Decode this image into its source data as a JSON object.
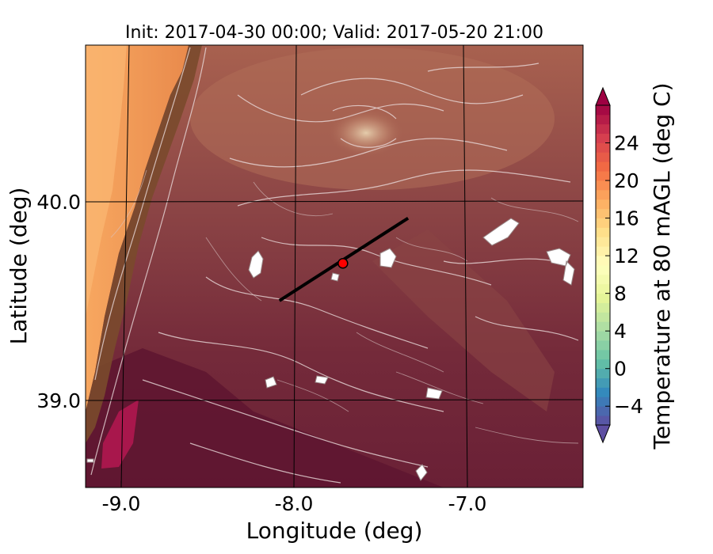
{
  "chart_data": {
    "type": "heatmap",
    "title": "Init: 2017-04-30 00:00; Valid: 2017-05-20 21:00",
    "xlabel": "Longitude (deg)",
    "ylabel": "Latitude (deg)",
    "xlim": [
      -9.25,
      -6.35
    ],
    "ylim": [
      38.55,
      40.8
    ],
    "x_ticks": [
      -9.0,
      -8.0,
      -7.0
    ],
    "x_tick_labels": [
      "-9.0",
      "-8.0",
      "-7.0"
    ],
    "y_ticks": [
      39.0,
      40.0
    ],
    "y_tick_labels": [
      "39.0",
      "40.0"
    ],
    "grid": true,
    "colorbar": {
      "label": "Temperature at 80 mAGL (deg C)",
      "colormap": "Spectral_r",
      "vmin": -6,
      "vmax": 28,
      "step": 1,
      "extend": "both",
      "ticks": [
        -4,
        0,
        4,
        8,
        12,
        16,
        20,
        24
      ],
      "tick_labels": [
        "−4",
        "0",
        "4",
        "8",
        "12",
        "16",
        "20",
        "24"
      ]
    },
    "transect_line": {
      "start": [
        -8.12,
        39.5
      ],
      "end": [
        -7.37,
        39.92
      ],
      "color": "#000000"
    },
    "site_marker": {
      "lon": -7.75,
      "lat": 39.69,
      "color": "#ff0000"
    },
    "colors": {
      "warm_coast": "#f59a55",
      "mid_land": "#9b4e44",
      "dark_land": "#6a1f33",
      "contour": "#e8dada"
    }
  }
}
